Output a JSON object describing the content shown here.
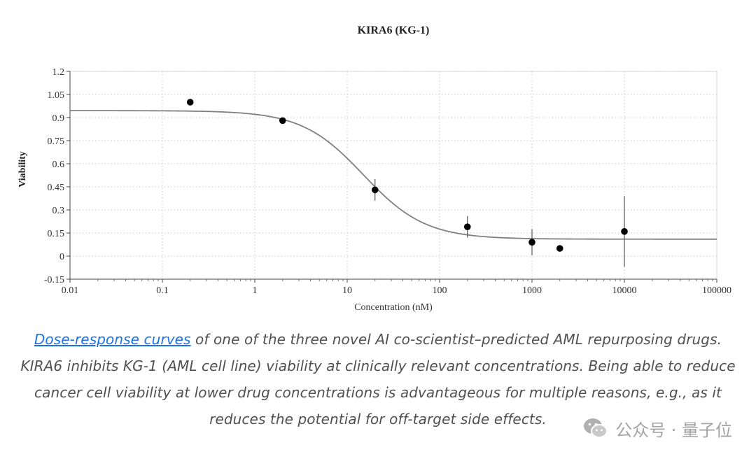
{
  "chart_data": {
    "type": "scatter",
    "title": "KIRA6 (KG-1)",
    "xlabel": "Concentration (nM)",
    "ylabel": "Viability",
    "xscale": "log",
    "xlim": [
      0.01,
      100000
    ],
    "ylim": [
      -0.15,
      1.2
    ],
    "grid": true,
    "x_ticks": [
      0.01,
      0.1,
      1,
      10,
      100,
      1000,
      10000,
      100000
    ],
    "x_tick_labels": [
      "0.01",
      "0.1",
      "1",
      "10",
      "100",
      "1000",
      "10000",
      "100000"
    ],
    "y_ticks": [
      -0.15,
      0,
      0.15,
      0.3,
      0.45,
      0.6,
      0.75,
      0.9,
      1.05,
      1.2
    ],
    "y_tick_labels": [
      "-0.15",
      "0",
      "0.15",
      "0.3",
      "0.45",
      "0.6",
      "0.75",
      "0.9",
      "1.05",
      "1.2"
    ],
    "points": [
      {
        "x": 0.2,
        "y": 1.0,
        "err": 0
      },
      {
        "x": 2,
        "y": 0.88,
        "err": 0
      },
      {
        "x": 20,
        "y": 0.43,
        "err": 0.07
      },
      {
        "x": 200,
        "y": 0.19,
        "err": 0.07
      },
      {
        "x": 1000,
        "y": 0.09,
        "err": 0.085
      },
      {
        "x": 2000,
        "y": 0.05,
        "err": 0
      },
      {
        "x": 10000,
        "y": 0.16,
        "err": 0.23
      }
    ],
    "fit_curve": {
      "model": "4PL",
      "top": 0.945,
      "bottom": 0.11,
      "ic50": 15,
      "hill": 1.3,
      "x_range": [
        0.01,
        100000
      ],
      "color": "#808080"
    },
    "marker_color": "#000000"
  },
  "caption": {
    "link_text": "Dose-response curves",
    "text": " of one of the three novel AI co-scientist–predicted AML repurposing drugs. KIRA6 inhibits KG-1 (AML cell line) viability at clinically relevant concentrations. Being able to reduce cancer cell viability at lower drug concentrations is advantageous for multiple reasons, e.g., as it reduces the potential for off-target side effects.",
    "link_color": "#1a73e8",
    "text_color": "#505050"
  },
  "watermark": {
    "text": "公众号 · 量子位",
    "icon": "wechat-icon"
  }
}
